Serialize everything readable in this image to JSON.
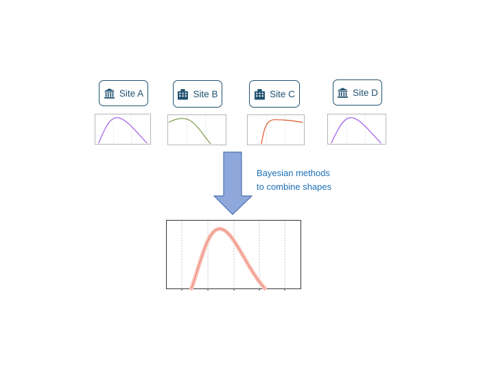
{
  "sites": [
    {
      "label": "Site A",
      "icon": "institution-icon",
      "curve_color": "#a160e6"
    },
    {
      "label": "Site B",
      "icon": "building-icon",
      "curve_color": "#7c9a4e"
    },
    {
      "label": "Site C",
      "icon": "building-icon",
      "curve_color": "#e0532b"
    },
    {
      "label": "Site D",
      "icon": "institution-icon",
      "curve_color": "#a160e6"
    }
  ],
  "caption": {
    "line1": "Bayesian methods",
    "line2": "to combine shapes"
  },
  "colors": {
    "box_border": "#1e4f6e",
    "arrow_fill": "#8fa8dc",
    "arrow_stroke": "#4a6fb0",
    "combined_curve": "#f08878",
    "caption": "#1a6fb5"
  }
}
